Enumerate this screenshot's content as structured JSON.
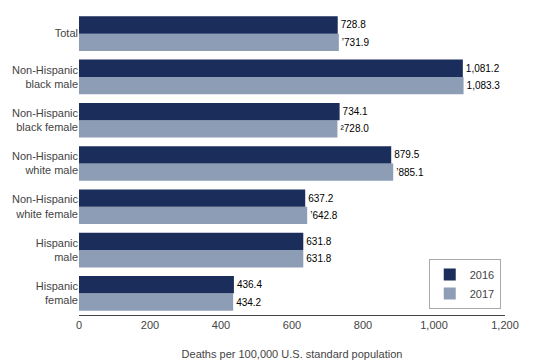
{
  "chart_data": {
    "type": "bar",
    "orientation": "horizontal",
    "categories": [
      "Hispanic\nfemale",
      "Hispanic\nmale",
      "Non-Hispanic\nwhite female",
      "Non-Hispanic\nwhite male",
      "Non-Hispanic\nblack female",
      "Non-Hispanic\nblack male",
      "Total"
    ],
    "series": [
      {
        "name": "2016",
        "color": "#1b2d5b",
        "values": [
          436.4,
          631.8,
          637.2,
          879.5,
          734.1,
          1081.2,
          728.8
        ],
        "value_labels": [
          "436.4",
          "631.8",
          "637.2",
          "879.5",
          "734.1",
          "1,081.2",
          "728.8"
        ]
      },
      {
        "name": "2017",
        "color": "#8d9db6",
        "values": [
          434.2,
          631.8,
          642.8,
          885.1,
          728.0,
          1083.3,
          731.9
        ],
        "value_labels": [
          "434.2",
          "631.8",
          "’642.8",
          "’885.1",
          "²728.0",
          "1,083.3",
          "’731.9"
        ]
      }
    ],
    "xlabel": "Deaths per 100,000 U.S. standard population",
    "xlim": [
      0,
      1200
    ],
    "xticks": [
      0,
      200,
      400,
      600,
      800,
      {
        "value": 1000,
        "label": "1,000"
      },
      {
        "value": 1200,
        "label": "1,200"
      }
    ],
    "data_labels": true,
    "legend": "lower right",
    "grid": false
  }
}
